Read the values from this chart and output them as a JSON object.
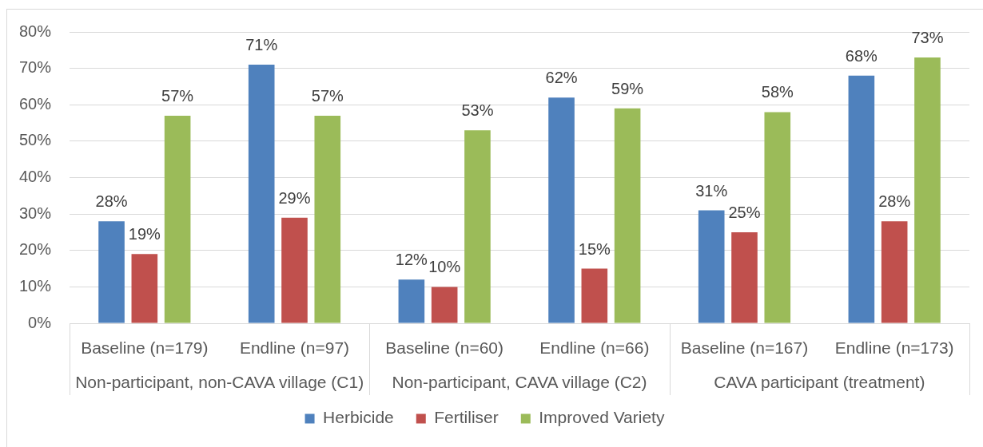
{
  "chart_data": {
    "type": "bar",
    "categories": [
      "Baseline (n=179)",
      "Endline (n=97)",
      "Baseline (n=60)",
      "Endline (n=66)",
      "Baseline (n=167)",
      "Endline (n=173)"
    ],
    "series": [
      {
        "name": "Herbicide",
        "color": "#4f81bd",
        "values": [
          28,
          71,
          12,
          62,
          31,
          68
        ],
        "value_labels": [
          "28%",
          "71%",
          "12%",
          "62%",
          "31%",
          "68%"
        ]
      },
      {
        "name": "Fertiliser",
        "color": "#c0504d",
        "values": [
          19,
          29,
          10,
          15,
          25,
          28
        ],
        "value_labels": [
          "19%",
          "29%",
          "10%",
          "15%",
          "25%",
          "28%"
        ]
      },
      {
        "name": "Improved Variety",
        "color": "#9bbb59",
        "values": [
          57,
          57,
          53,
          59,
          58,
          73
        ],
        "value_labels": [
          "57%",
          "57%",
          "53%",
          "59%",
          "58%",
          "73%"
        ]
      }
    ],
    "ylim": [
      0,
      80
    ],
    "yticks": [
      {
        "value": 0,
        "label": "0%"
      },
      {
        "value": 10,
        "label": "10%"
      },
      {
        "value": 20,
        "label": "20%"
      },
      {
        "value": 30,
        "label": "30%"
      },
      {
        "value": 40,
        "label": "40%"
      },
      {
        "value": 50,
        "label": "50%"
      },
      {
        "value": 60,
        "label": "60%"
      },
      {
        "value": 70,
        "label": "70%"
      },
      {
        "value": 80,
        "label": "80%"
      }
    ],
    "annotations": [
      "Non-participant, non-CAVA village (C1)",
      "Non-participant, CAVA village (C2)",
      "CAVA participant (treatment)"
    ],
    "grid": "y",
    "legend": "bottom"
  }
}
